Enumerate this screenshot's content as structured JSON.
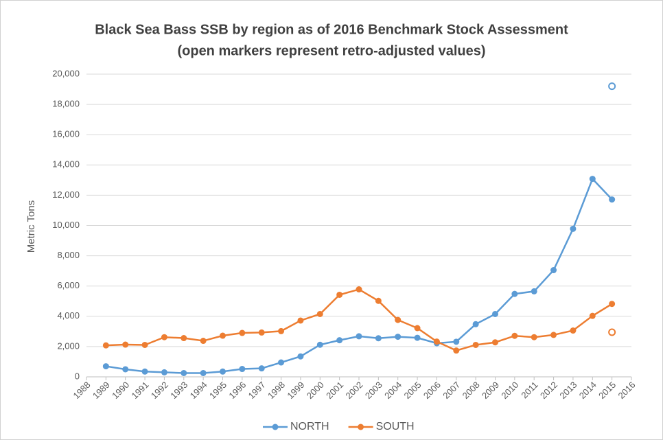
{
  "chart_data": {
    "type": "line",
    "title": "Black Sea Bass SSB by region as of 2016 Benchmark Stock Assessment",
    "subtitle": "(open markers represent retro-adjusted values)",
    "y_label": "Metric Tons",
    "x": [
      1989,
      1990,
      1991,
      1992,
      1993,
      1994,
      1995,
      1996,
      1997,
      1998,
      1999,
      2000,
      2001,
      2002,
      2003,
      2004,
      2005,
      2006,
      2007,
      2008,
      2009,
      2010,
      2011,
      2012,
      2013,
      2014,
      2015
    ],
    "series": [
      {
        "name": "NORTH",
        "color": "#5b9bd5",
        "values": [
          700,
          500,
          350,
          300,
          250,
          250,
          350,
          520,
          560,
          950,
          1350,
          2120,
          2420,
          2680,
          2550,
          2650,
          2580,
          2220,
          2320,
          3480,
          4150,
          5480,
          5650,
          7050,
          9780,
          13080,
          11720
        ],
        "open_markers": [
          {
            "x": 2015,
            "y": 19200
          }
        ]
      },
      {
        "name": "SOUTH",
        "color": "#ed7d31",
        "values": [
          2080,
          2130,
          2110,
          2620,
          2560,
          2380,
          2720,
          2900,
          2930,
          3020,
          3720,
          4150,
          5420,
          5780,
          5020,
          3760,
          3220,
          2330,
          1740,
          2110,
          2280,
          2710,
          2620,
          2770,
          3060,
          4030,
          4820
        ],
        "open_markers": [
          {
            "x": 2015,
            "y": 2950
          }
        ]
      }
    ],
    "xlim": [
      1988,
      2016
    ],
    "xticks": [
      1988,
      1989,
      1990,
      1991,
      1992,
      1993,
      1994,
      1995,
      1996,
      1997,
      1998,
      1999,
      2000,
      2001,
      2002,
      2003,
      2004,
      2005,
      2006,
      2007,
      2008,
      2009,
      2010,
      2011,
      2012,
      2013,
      2014,
      2015,
      2016
    ],
    "ylim": [
      0,
      20000
    ],
    "yticks": [
      0,
      {
        "value": 2000,
        "label": "2,000"
      },
      {
        "value": 4000,
        "label": "4,000"
      },
      {
        "value": 6000,
        "label": "6,000"
      },
      {
        "value": 8000,
        "label": "8,000"
      },
      {
        "value": 10000,
        "label": "10,000"
      },
      {
        "value": 12000,
        "label": "12,000"
      },
      {
        "value": 14000,
        "label": "14,000"
      },
      {
        "value": 16000,
        "label": "16,000"
      },
      {
        "value": 18000,
        "label": "18,000"
      },
      {
        "value": 20000,
        "label": "20,000"
      }
    ],
    "grid": true,
    "legend": "bottom"
  }
}
